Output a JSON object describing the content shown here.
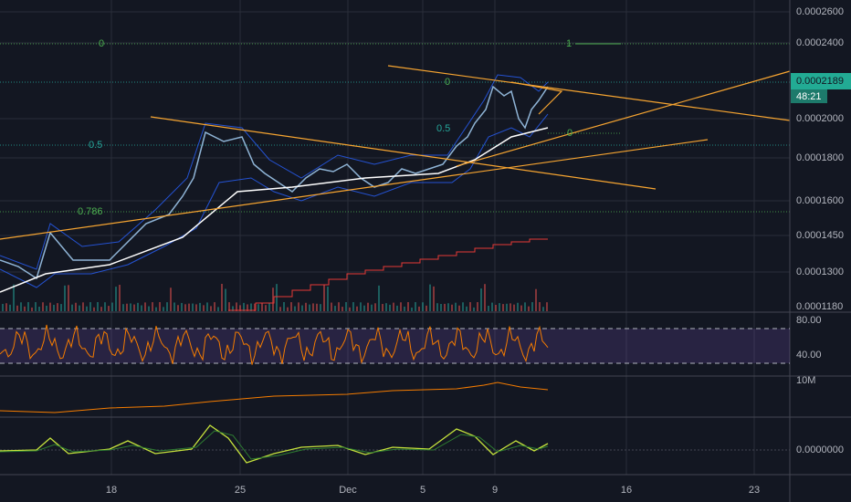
{
  "price_axis": {
    "labels": [
      "0.0002600",
      "0.0002400",
      "0.0002000",
      "0.0001800",
      "0.0001600",
      "0.0001450",
      "0.0001300",
      "0.0001180"
    ],
    "current_price": "0.0002189",
    "countdown": "48:21"
  },
  "rsi_axis": {
    "labels": [
      "80.00",
      "40.00"
    ]
  },
  "volume_axis": {
    "label": "10M"
  },
  "macd_axis": {
    "label": "0.0000000"
  },
  "time_axis": {
    "labels": [
      "18",
      "25",
      "Dec",
      "5",
      "9",
      "16",
      "23"
    ]
  },
  "fib_labels": [
    "0",
    "1",
    "0",
    "0.5",
    "0.5",
    "0",
    "0.786"
  ]
}
